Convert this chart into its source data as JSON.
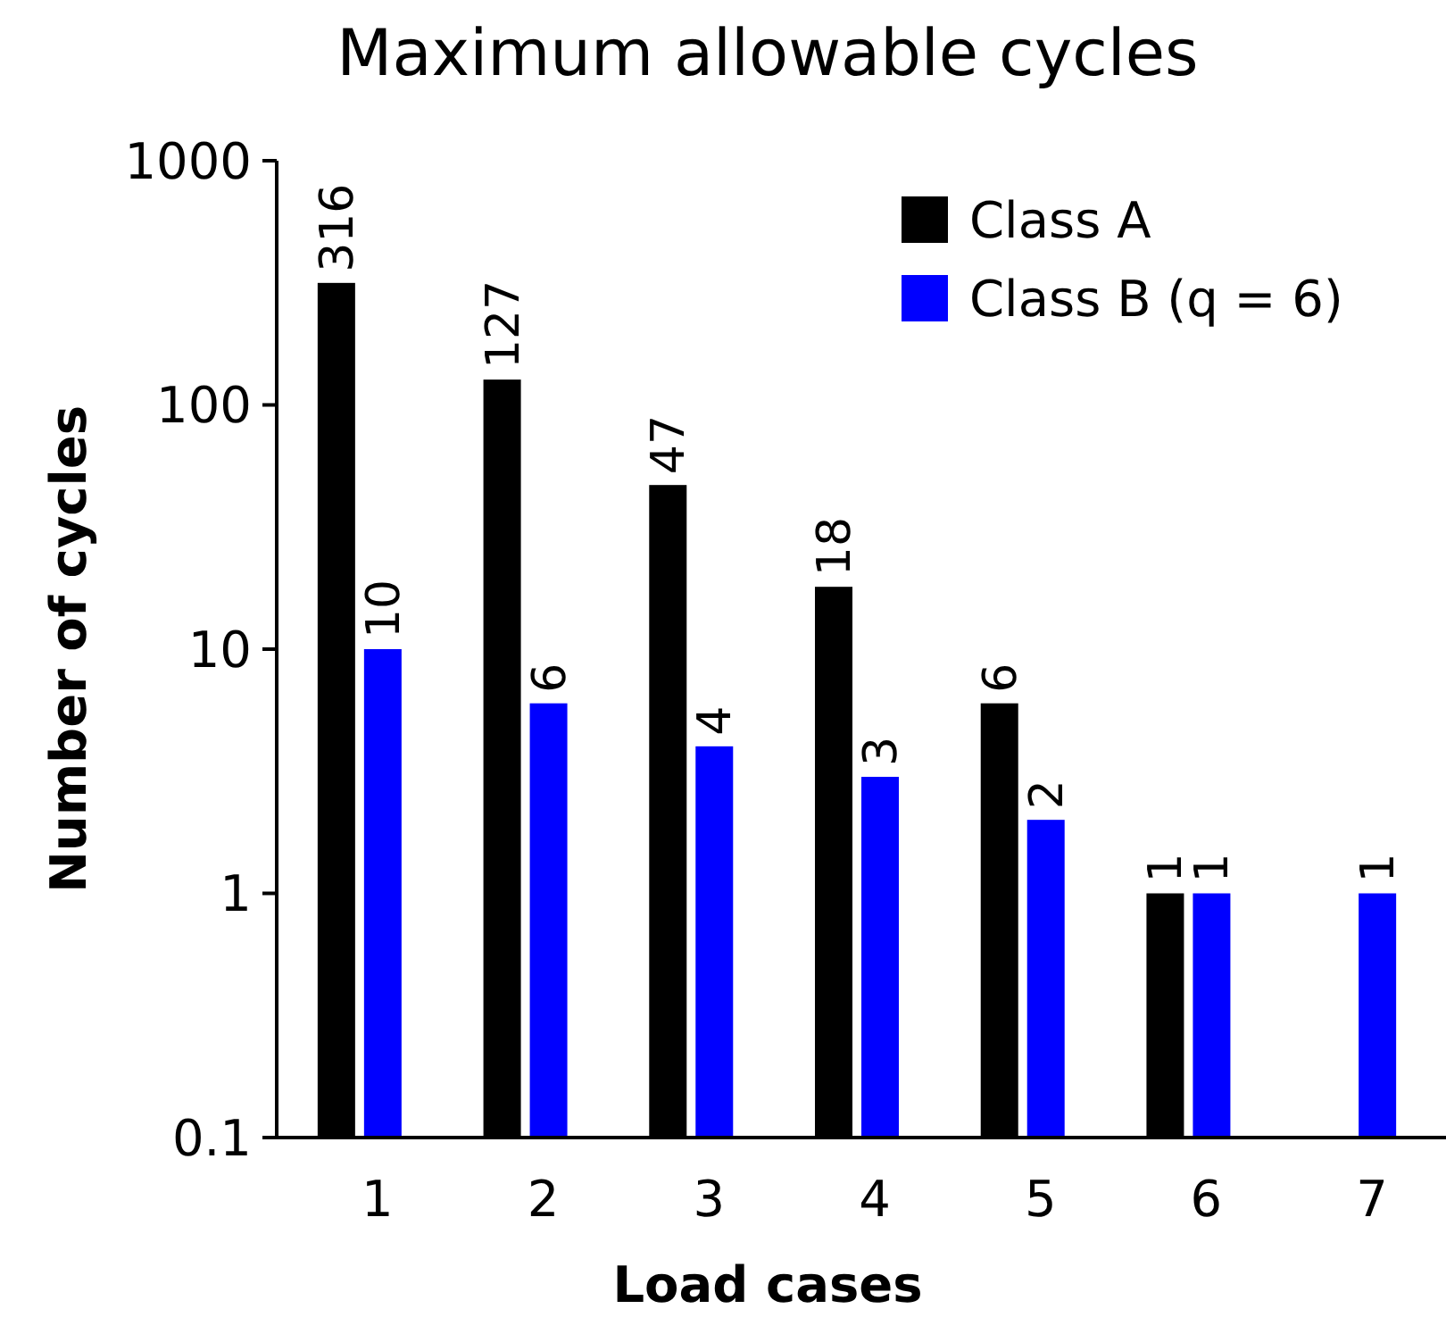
{
  "chart_data": {
    "type": "bar",
    "title": "Maximum allowable cycles",
    "xlabel": "Load cases",
    "ylabel": "Number of cycles",
    "categories": [
      "1",
      "2",
      "3",
      "4",
      "5",
      "6",
      "7"
    ],
    "series": [
      {
        "name": "Class A",
        "color": "#000000",
        "values": [
          316,
          127,
          47,
          18,
          6,
          1,
          null
        ]
      },
      {
        "name": "Class B (q = 6)",
        "color": "#0000ff",
        "values": [
          10,
          6,
          4,
          3,
          2,
          1,
          1
        ]
      }
    ],
    "log": true,
    "ylim": [
      0.1,
      1000
    ],
    "yticks": [
      0.1,
      1,
      10,
      100,
      1000
    ],
    "data_labels": true,
    "legend": "top right",
    "grid": false
  }
}
